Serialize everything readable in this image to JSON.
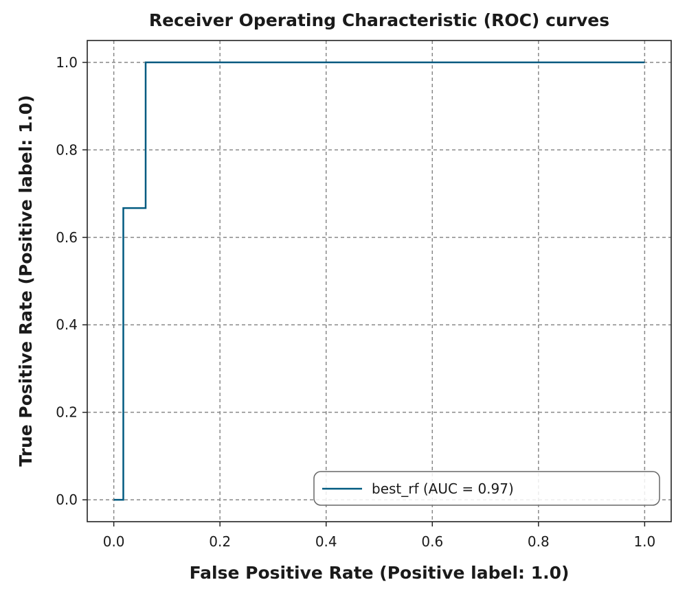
{
  "chart_data": {
    "type": "line",
    "title": "Receiver Operating Characteristic (ROC) curves",
    "xlabel": "False Positive Rate (Positive label: 1.0)",
    "ylabel": "True Positive Rate (Positive label: 1.0)",
    "xlim": [
      -0.05,
      1.05
    ],
    "ylim": [
      -0.05,
      1.05
    ],
    "xticks": [
      0.0,
      0.2,
      0.4,
      0.6,
      0.8,
      1.0
    ],
    "yticks": [
      0.0,
      0.2,
      0.4,
      0.6,
      0.8,
      1.0
    ],
    "xtick_labels": [
      "0.0",
      "0.2",
      "0.4",
      "0.6",
      "0.8",
      "1.0"
    ],
    "ytick_labels": [
      "0.0",
      "0.2",
      "0.4",
      "0.6",
      "0.8",
      "1.0"
    ],
    "grid": true,
    "legend_position": "lower-right",
    "series": [
      {
        "name": "best_rf (AUC = 0.97)",
        "color": "#005a80",
        "step": true,
        "x": [
          0.0,
          0.018,
          0.018,
          0.06,
          0.06,
          1.0
        ],
        "y": [
          0.0,
          0.0,
          0.667,
          0.667,
          1.0,
          1.0
        ]
      }
    ]
  }
}
